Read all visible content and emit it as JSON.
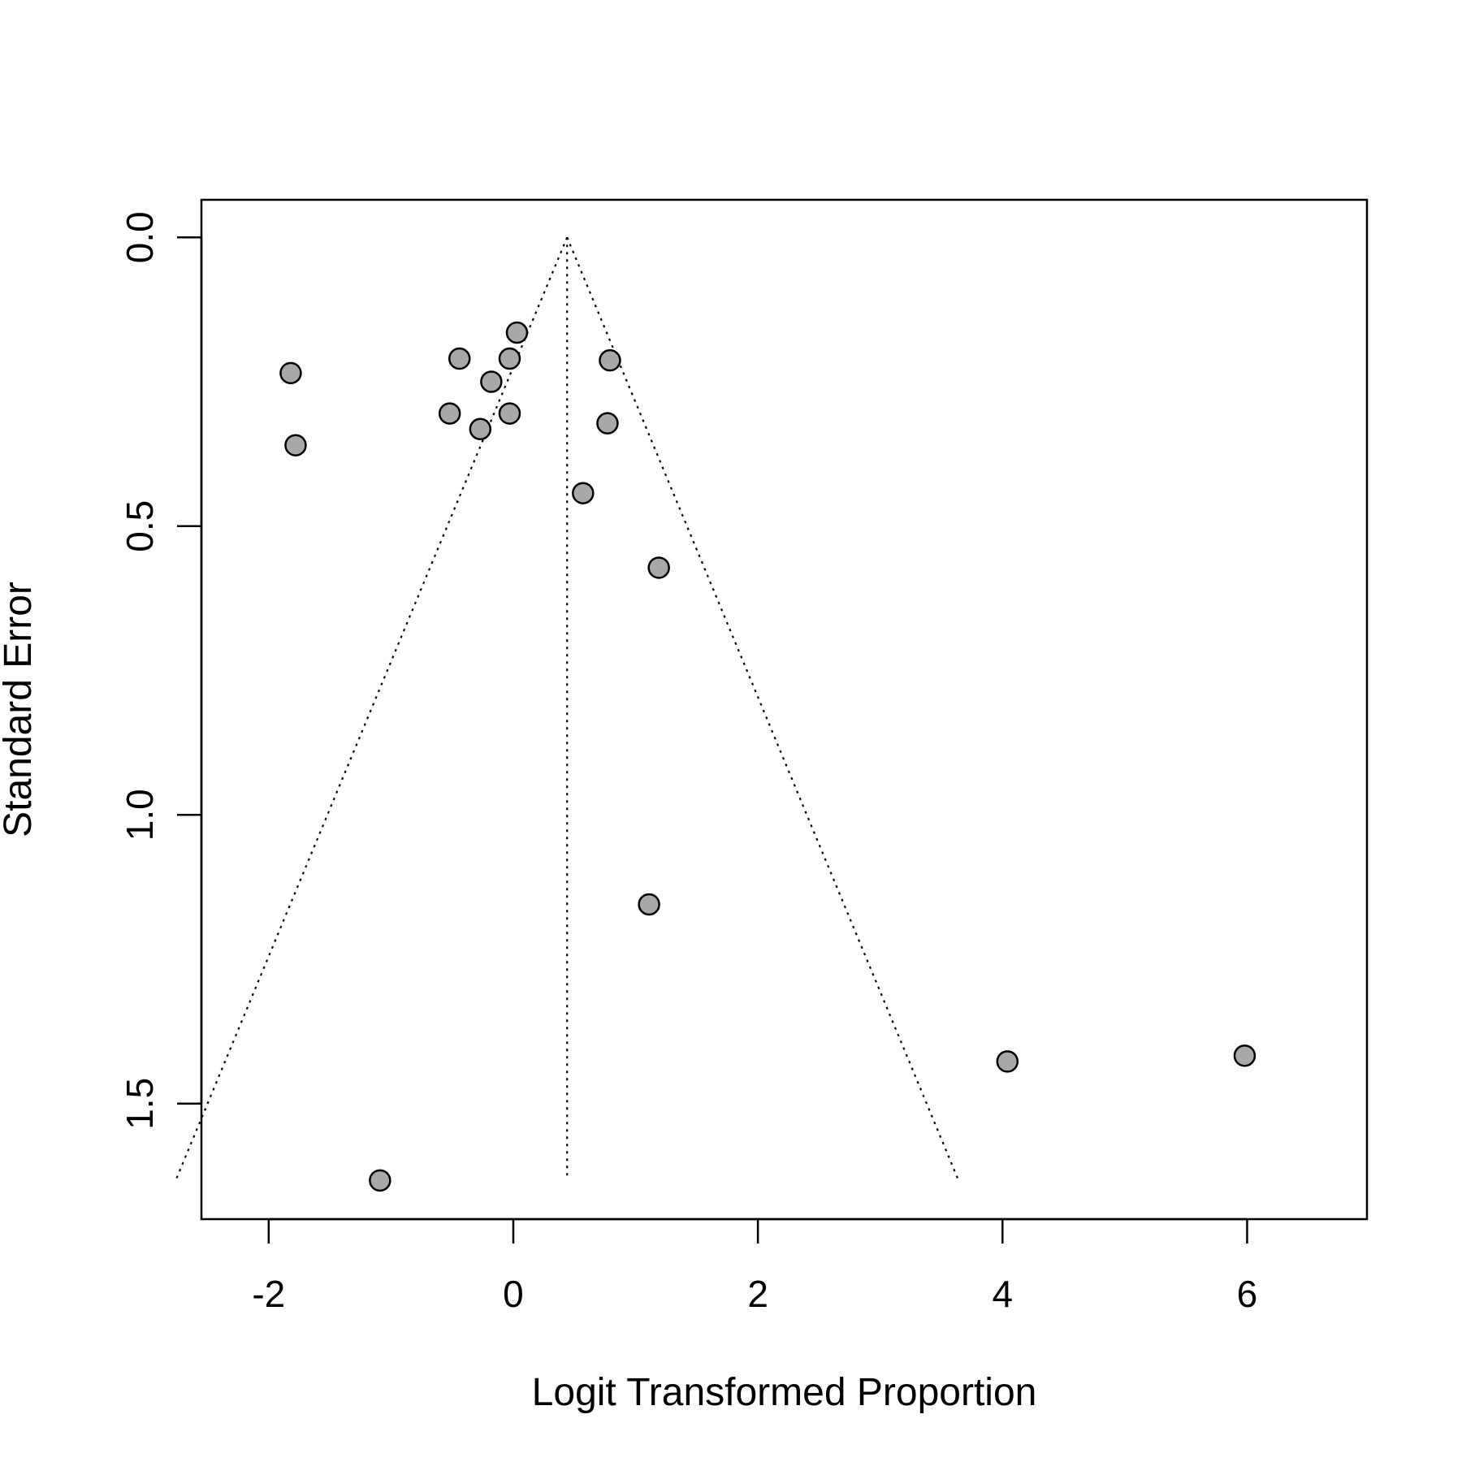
{
  "chart_data": {
    "type": "scatter",
    "title": "",
    "xlabel": "Logit Transformed Proportion",
    "ylabel": "Standard Error",
    "xlim": [
      -2.55,
      6.98
    ],
    "ylim": [
      1.7,
      -0.065
    ],
    "y_reversed": true,
    "x_ticks": [
      -2,
      0,
      2,
      4,
      6
    ],
    "x_tick_labels": [
      "-2",
      "0",
      "2",
      "4",
      "6"
    ],
    "y_ticks": [
      0.0,
      0.5,
      1.0,
      1.5
    ],
    "y_tick_labels": [
      "0.0",
      "0.5",
      "1.0",
      "1.5"
    ],
    "grid": false,
    "legend": "none",
    "point_fill": "#a8a8a8",
    "point_stroke": "#000000",
    "funnel": {
      "center": 0.44,
      "se_max": 1.63,
      "z": 1.96,
      "line_style": "dotted"
    },
    "points": [
      {
        "x": 0.03,
        "y": 0.165
      },
      {
        "x": -0.44,
        "y": 0.21
      },
      {
        "x": -0.03,
        "y": 0.21
      },
      {
        "x": 0.79,
        "y": 0.213
      },
      {
        "x": -1.82,
        "y": 0.235
      },
      {
        "x": -0.18,
        "y": 0.25
      },
      {
        "x": -0.52,
        "y": 0.305
      },
      {
        "x": -0.03,
        "y": 0.305
      },
      {
        "x": 0.77,
        "y": 0.322
      },
      {
        "x": -0.27,
        "y": 0.332
      },
      {
        "x": -1.78,
        "y": 0.36
      },
      {
        "x": 0.57,
        "y": 0.443
      },
      {
        "x": 1.19,
        "y": 0.572
      },
      {
        "x": 1.11,
        "y": 1.155
      },
      {
        "x": 4.04,
        "y": 1.427
      },
      {
        "x": 5.98,
        "y": 1.417
      },
      {
        "x": -1.09,
        "y": 1.633
      }
    ]
  }
}
